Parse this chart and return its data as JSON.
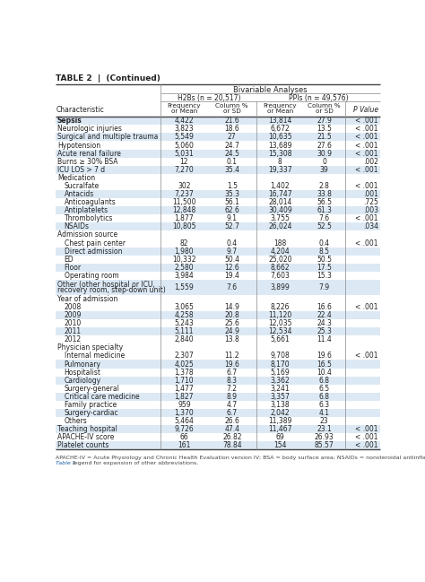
{
  "title": "TABLE 2  |  (Continued)",
  "header_main": "Bivariable Analyses",
  "header_h2b": "H2Bs (n = 20,517)",
  "header_ppi": "PPIs (n = 49,576)",
  "rows": [
    {
      "label": "Sepsis",
      "bold": true,
      "indent": 0,
      "h2b_freq": "4,422",
      "h2b_col": "21.6",
      "ppi_freq": "13,814",
      "ppi_col": "27.9",
      "pval": "< .001",
      "section": false,
      "shade": true
    },
    {
      "label": "Neurologic injuries",
      "bold": false,
      "indent": 0,
      "h2b_freq": "3,823",
      "h2b_col": "18.6",
      "ppi_freq": "6,672",
      "ppi_col": "13.5",
      "pval": "< .001",
      "section": false,
      "shade": false
    },
    {
      "label": "Surgical and multiple trauma",
      "bold": false,
      "indent": 0,
      "h2b_freq": "5,549",
      "h2b_col": "27",
      "ppi_freq": "10,635",
      "ppi_col": "21.5",
      "pval": "< .001",
      "section": false,
      "shade": true
    },
    {
      "label": "Hypotension",
      "bold": false,
      "indent": 0,
      "h2b_freq": "5,060",
      "h2b_col": "24.7",
      "ppi_freq": "13,689",
      "ppi_col": "27.6",
      "pval": "< .001",
      "section": false,
      "shade": false
    },
    {
      "label": "Acute renal failure",
      "bold": false,
      "indent": 0,
      "h2b_freq": "5,031",
      "h2b_col": "24.5",
      "ppi_freq": "15,308",
      "ppi_col": "30.9",
      "pval": "< .001",
      "section": false,
      "shade": true
    },
    {
      "label": "Burns ≥ 30% BSA",
      "bold": false,
      "indent": 0,
      "h2b_freq": "12",
      "h2b_col": "0.1",
      "ppi_freq": "8",
      "ppi_col": "0",
      "pval": ".002",
      "section": false,
      "shade": false
    },
    {
      "label": "ICU LOS > 7 d",
      "bold": false,
      "indent": 0,
      "h2b_freq": "7,270",
      "h2b_col": "35.4",
      "ppi_freq": "19,337",
      "ppi_col": "39",
      "pval": "< .001",
      "section": false,
      "shade": true
    },
    {
      "label": "Medication",
      "bold": false,
      "indent": 0,
      "h2b_freq": "",
      "h2b_col": "",
      "ppi_freq": "",
      "ppi_col": "",
      "pval": "",
      "section": true,
      "shade": false
    },
    {
      "label": "  Sucralfate",
      "bold": false,
      "indent": 1,
      "h2b_freq": "302",
      "h2b_col": "1.5",
      "ppi_freq": "1,402",
      "ppi_col": "2.8",
      "pval": "< .001",
      "section": false,
      "shade": false
    },
    {
      "label": "  Antacids",
      "bold": false,
      "indent": 1,
      "h2b_freq": "7,237",
      "h2b_col": "35.3",
      "ppi_freq": "16,747",
      "ppi_col": "33.8",
      "pval": ".001",
      "section": false,
      "shade": true
    },
    {
      "label": "  Anticoagulants",
      "bold": false,
      "indent": 1,
      "h2b_freq": "11,500",
      "h2b_col": "56.1",
      "ppi_freq": "28,014",
      "ppi_col": "56.5",
      "pval": ".725",
      "section": false,
      "shade": false
    },
    {
      "label": "  Antiplatelets",
      "bold": false,
      "indent": 1,
      "h2b_freq": "12,848",
      "h2b_col": "62.6",
      "ppi_freq": "30,409",
      "ppi_col": "61.3",
      "pval": ".003",
      "section": false,
      "shade": true
    },
    {
      "label": "  Thrombolytics",
      "bold": false,
      "indent": 1,
      "h2b_freq": "1,877",
      "h2b_col": "9.1",
      "ppi_freq": "3,755",
      "ppi_col": "7.6",
      "pval": "< .001",
      "section": false,
      "shade": false
    },
    {
      "label": "  NSAIDs",
      "bold": false,
      "indent": 1,
      "h2b_freq": "10,805",
      "h2b_col": "52.7",
      "ppi_freq": "26,024",
      "ppi_col": "52.5",
      "pval": ".034",
      "section": false,
      "shade": true
    },
    {
      "label": "Admission source",
      "bold": false,
      "indent": 0,
      "h2b_freq": "",
      "h2b_col": "",
      "ppi_freq": "",
      "ppi_col": "",
      "pval": "",
      "section": true,
      "shade": false
    },
    {
      "label": "  Chest pain center",
      "bold": false,
      "indent": 1,
      "h2b_freq": "82",
      "h2b_col": "0.4",
      "ppi_freq": "188",
      "ppi_col": "0.4",
      "pval": "< .001",
      "section": false,
      "shade": false
    },
    {
      "label": "  Direct admission",
      "bold": false,
      "indent": 1,
      "h2b_freq": "1,980",
      "h2b_col": "9.7",
      "ppi_freq": "4,204",
      "ppi_col": "8.5",
      "pval": "",
      "section": false,
      "shade": true
    },
    {
      "label": "  ED",
      "bold": false,
      "indent": 1,
      "h2b_freq": "10,332",
      "h2b_col": "50.4",
      "ppi_freq": "25,020",
      "ppi_col": "50.5",
      "pval": "",
      "section": false,
      "shade": false
    },
    {
      "label": "  Floor",
      "bold": false,
      "indent": 1,
      "h2b_freq": "2,580",
      "h2b_col": "12.6",
      "ppi_freq": "8,662",
      "ppi_col": "17.5",
      "pval": "",
      "section": false,
      "shade": true
    },
    {
      "label": "  Operating room",
      "bold": false,
      "indent": 1,
      "h2b_freq": "3,984",
      "h2b_col": "19.4",
      "ppi_freq": "7,603",
      "ppi_col": "15.3",
      "pval": "",
      "section": false,
      "shade": false
    },
    {
      "label": "  Other (other hospital or ICU,\n  recovery room, step-down unit)",
      "bold": false,
      "indent": 1,
      "h2b_freq": "1,559",
      "h2b_col": "7.6",
      "ppi_freq": "3,899",
      "ppi_col": "7.9",
      "pval": "",
      "section": false,
      "shade": true,
      "multiline": true
    },
    {
      "label": "Year of admission",
      "bold": false,
      "indent": 0,
      "h2b_freq": "",
      "h2b_col": "",
      "ppi_freq": "",
      "ppi_col": "",
      "pval": "",
      "section": true,
      "shade": false
    },
    {
      "label": "  2008",
      "bold": false,
      "indent": 1,
      "h2b_freq": "3,065",
      "h2b_col": "14.9",
      "ppi_freq": "8,226",
      "ppi_col": "16.6",
      "pval": "< .001",
      "section": false,
      "shade": false
    },
    {
      "label": "  2009",
      "bold": false,
      "indent": 1,
      "h2b_freq": "4,258",
      "h2b_col": "20.8",
      "ppi_freq": "11,120",
      "ppi_col": "22.4",
      "pval": "",
      "section": false,
      "shade": true
    },
    {
      "label": "  2010",
      "bold": false,
      "indent": 1,
      "h2b_freq": "5,243",
      "h2b_col": "25.6",
      "ppi_freq": "12,035",
      "ppi_col": "24.3",
      "pval": "",
      "section": false,
      "shade": false
    },
    {
      "label": "  2011",
      "bold": false,
      "indent": 1,
      "h2b_freq": "5,111",
      "h2b_col": "24.9",
      "ppi_freq": "12,534",
      "ppi_col": "25.3",
      "pval": "",
      "section": false,
      "shade": true
    },
    {
      "label": "  2012",
      "bold": false,
      "indent": 1,
      "h2b_freq": "2,840",
      "h2b_col": "13.8",
      "ppi_freq": "5,661",
      "ppi_col": "11.4",
      "pval": "",
      "section": false,
      "shade": false
    },
    {
      "label": "Physician specialty",
      "bold": false,
      "indent": 0,
      "h2b_freq": "",
      "h2b_col": "",
      "ppi_freq": "",
      "ppi_col": "",
      "pval": "",
      "section": true,
      "shade": false
    },
    {
      "label": "  Internal medicine",
      "bold": false,
      "indent": 1,
      "h2b_freq": "2,307",
      "h2b_col": "11.2",
      "ppi_freq": "9,708",
      "ppi_col": "19.6",
      "pval": "< .001",
      "section": false,
      "shade": false
    },
    {
      "label": "  Pulmonary",
      "bold": false,
      "indent": 1,
      "h2b_freq": "4,025",
      "h2b_col": "19.6",
      "ppi_freq": "8,170",
      "ppi_col": "16.5",
      "pval": "",
      "section": false,
      "shade": true
    },
    {
      "label": "  Hospitalist",
      "bold": false,
      "indent": 1,
      "h2b_freq": "1,378",
      "h2b_col": "6.7",
      "ppi_freq": "5,169",
      "ppi_col": "10.4",
      "pval": "",
      "section": false,
      "shade": false
    },
    {
      "label": "  Cardiology",
      "bold": false,
      "indent": 1,
      "h2b_freq": "1,710",
      "h2b_col": "8.3",
      "ppi_freq": "3,362",
      "ppi_col": "6.8",
      "pval": "",
      "section": false,
      "shade": true
    },
    {
      "label": "  Surgery-general",
      "bold": false,
      "indent": 1,
      "h2b_freq": "1,477",
      "h2b_col": "7.2",
      "ppi_freq": "3,241",
      "ppi_col": "6.5",
      "pval": "",
      "section": false,
      "shade": false
    },
    {
      "label": "  Critical care medicine",
      "bold": false,
      "indent": 1,
      "h2b_freq": "1,827",
      "h2b_col": "8.9",
      "ppi_freq": "3,357",
      "ppi_col": "6.8",
      "pval": "",
      "section": false,
      "shade": true
    },
    {
      "label": "  Family practice",
      "bold": false,
      "indent": 1,
      "h2b_freq": "959",
      "h2b_col": "4.7",
      "ppi_freq": "3,138",
      "ppi_col": "6.3",
      "pval": "",
      "section": false,
      "shade": false
    },
    {
      "label": "  Surgery-cardiac",
      "bold": false,
      "indent": 1,
      "h2b_freq": "1,370",
      "h2b_col": "6.7",
      "ppi_freq": "2,042",
      "ppi_col": "4.1",
      "pval": "",
      "section": false,
      "shade": true
    },
    {
      "label": "  Others",
      "bold": false,
      "indent": 1,
      "h2b_freq": "5,464",
      "h2b_col": "26.6",
      "ppi_freq": "11,389",
      "ppi_col": "23",
      "pval": "",
      "section": false,
      "shade": false
    },
    {
      "label": "Teaching hospital",
      "bold": false,
      "indent": 0,
      "h2b_freq": "9,726",
      "h2b_col": "47.4",
      "ppi_freq": "11,467",
      "ppi_col": "23.1",
      "pval": "< .001",
      "section": false,
      "shade": true
    },
    {
      "label": "APACHE-IV score",
      "bold": false,
      "indent": 0,
      "h2b_freq": "66",
      "h2b_col": "26.82",
      "ppi_freq": "69",
      "ppi_col": "26.93",
      "pval": "< .001",
      "section": false,
      "shade": false
    },
    {
      "label": "Platelet counts",
      "bold": false,
      "indent": 0,
      "h2b_freq": "161",
      "h2b_col": "78.84",
      "ppi_freq": "154",
      "ppi_col": "85.57",
      "pval": "< .001",
      "section": false,
      "shade": true
    }
  ],
  "footnote_line1": "APACHE-IV = Acute Physiology and Chronic Health Evaluation version IV; BSA = body surface area; NSAIDs = nonsteroidal antiinflammatory drugs. See",
  "footnote_line2": "Table 1 legend for expansion of other abbreviations.",
  "bg_shade": "#dce9f5",
  "bg_white": "#ffffff",
  "text_color": "#222222",
  "line_color": "#888888",
  "heavy_line": "#444444"
}
